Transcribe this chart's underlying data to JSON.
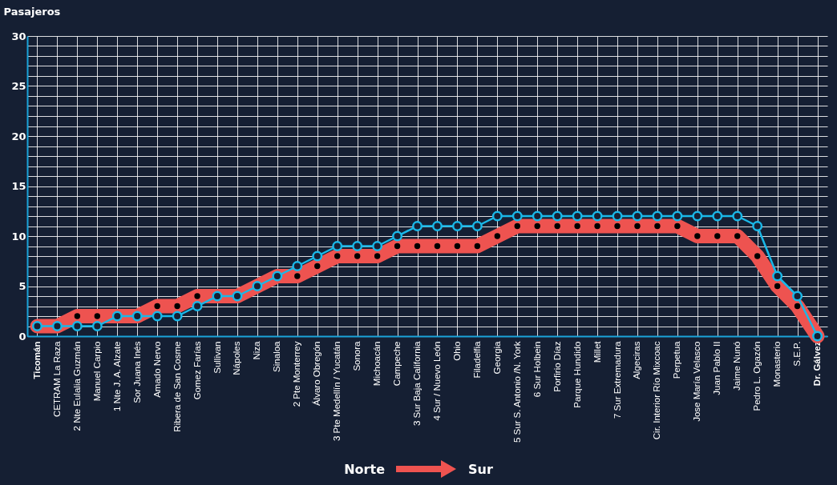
{
  "chart_data": {
    "type": "line",
    "ylabel": "Pasajeros",
    "categories": [
      "Ticomán",
      "CETRAM La Raza",
      "2 Nte Eulalia Guzmán",
      "Manuel Carpio",
      "1 Nte J. A. Alzate",
      "Sor Juana Inés",
      "Amado Nervo",
      "Ribera de San Cosme",
      "Gomez Farías",
      "Sullivan",
      "Nápoles",
      "Niza",
      "Sinaloa",
      "2 Pte Monterrey",
      "Álvaro Obregón",
      "3 Pte Medellín / Yucatán",
      "Sonora",
      "Michoacán",
      "Campeche",
      "3 Sur Baja California",
      "4 Sur / Nuevo León",
      "Ohio",
      "Filadelfia",
      "Georgia",
      "5 Sur S. Antonio /N. York",
      "6 Sur Holbein",
      "Porfirio Díaz",
      "Parque Hundido",
      "Millet",
      "7 Sur Extremadura",
      "Algeciras",
      "Cir. Interior Río Mixcoac",
      "Perpetua",
      "Jose María Velasco",
      "Juan Pablo II",
      "Jaime Nunó",
      "Pedro L. Ogazón",
      "Monasterio",
      "S.E.P.",
      "Dr. Gálvez"
    ],
    "series": [
      {
        "color": "#ee5350",
        "values": [
          1,
          1,
          2,
          2,
          2,
          2,
          3,
          3,
          4,
          4,
          4,
          5,
          6,
          6,
          7,
          8,
          8,
          8,
          9,
          9,
          9,
          9,
          9,
          10,
          11,
          11,
          11,
          11,
          11,
          11,
          11,
          11,
          11,
          10,
          10,
          10,
          8,
          5,
          3,
          0
        ]
      },
      {
        "color": "#1ab8e8",
        "values": [
          1,
          1,
          1,
          1,
          2,
          2,
          2,
          2,
          3,
          4,
          4,
          5,
          6,
          7,
          8,
          9,
          9,
          9,
          10,
          11,
          11,
          11,
          11,
          12,
          12,
          12,
          12,
          12,
          12,
          12,
          12,
          12,
          12,
          12,
          12,
          12,
          11,
          6,
          4,
          0
        ]
      }
    ],
    "ylim": [
      0,
      30
    ],
    "yticks": [
      0,
      {
        "value": 1,
        "label": null
      },
      {
        "value": 2,
        "label": null
      },
      {
        "value": 3,
        "label": null
      },
      {
        "value": 4,
        "label": null
      },
      5,
      {
        "value": 6,
        "label": null
      },
      {
        "value": 7,
        "label": null
      },
      {
        "value": 8,
        "label": null
      },
      {
        "value": 9,
        "label": null
      },
      10,
      {
        "value": 11,
        "label": null
      },
      {
        "value": 12,
        "label": null
      },
      {
        "value": 13,
        "label": null
      },
      {
        "value": 14,
        "label": null
      },
      15,
      {
        "value": 16,
        "label": null
      },
      {
        "value": 17,
        "label": null
      },
      {
        "value": 18,
        "label": null
      },
      {
        "value": 19,
        "label": null
      },
      20,
      {
        "value": 21,
        "label": null
      },
      {
        "value": 22,
        "label": null
      },
      {
        "value": 23,
        "label": null
      },
      {
        "value": 24,
        "label": null
      },
      25,
      {
        "value": 26,
        "label": null
      },
      {
        "value": 27,
        "label": null
      },
      {
        "value": 28,
        "label": null
      },
      {
        "value": 29,
        "label": null
      },
      30
    ],
    "grid": true,
    "marker": "circle",
    "line_style": "solid",
    "annotations": [
      "Norte",
      "Sur"
    ]
  }
}
